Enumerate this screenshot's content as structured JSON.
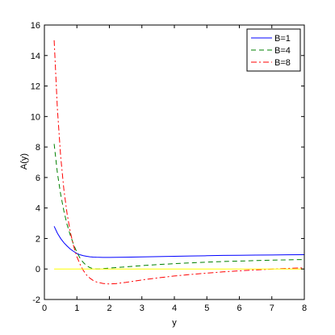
{
  "chart_data": {
    "type": "line",
    "title": "",
    "xlabel": "y",
    "ylabel": "A(y)",
    "xlim": [
      0,
      8
    ],
    "ylim": [
      -2,
      16
    ],
    "xticks": [
      0,
      1,
      2,
      3,
      4,
      5,
      6,
      7,
      8
    ],
    "yticks": [
      -2,
      0,
      2,
      4,
      6,
      8,
      10,
      12,
      14,
      16
    ],
    "grid": false,
    "legend": {
      "position": "top-right"
    },
    "series": [
      {
        "name": "B=1",
        "color": "#0000ff",
        "dash": "solid",
        "x": [
          0.3,
          0.4,
          0.5,
          0.6,
          0.7,
          0.8,
          0.9,
          1.0,
          1.1,
          1.2,
          1.3,
          1.4,
          1.5,
          1.6,
          1.8,
          2.0,
          2.5,
          3.0,
          3.5,
          4.0,
          4.5,
          5.0,
          5.5,
          6.0,
          6.5,
          7.0,
          7.5,
          8.0
        ],
        "y": [
          2.8,
          2.35,
          2.0,
          1.72,
          1.5,
          1.3,
          1.15,
          1.02,
          0.93,
          0.87,
          0.83,
          0.8,
          0.78,
          0.77,
          0.76,
          0.76,
          0.77,
          0.79,
          0.81,
          0.83,
          0.85,
          0.87,
          0.89,
          0.9,
          0.91,
          0.92,
          0.93,
          0.94
        ]
      },
      {
        "name": "B=4",
        "color": "#008000",
        "dash": "dashed",
        "x": [
          0.3,
          0.4,
          0.5,
          0.6,
          0.7,
          0.8,
          0.9,
          1.0,
          1.1,
          1.2,
          1.3,
          1.4,
          1.5,
          1.6,
          1.7,
          1.8,
          2.0,
          2.5,
          3.0,
          3.5,
          4.0,
          4.5,
          5.0,
          5.5,
          6.0,
          6.5,
          7.0,
          7.5,
          8.0
        ],
        "y": [
          8.2,
          6.3,
          4.9,
          3.8,
          2.9,
          2.2,
          1.6,
          1.1,
          0.7,
          0.42,
          0.22,
          0.09,
          0.02,
          0.0,
          0.0,
          0.02,
          0.06,
          0.14,
          0.22,
          0.29,
          0.35,
          0.4,
          0.45,
          0.49,
          0.52,
          0.55,
          0.58,
          0.6,
          0.62
        ]
      },
      {
        "name": "B=8",
        "color": "#ff0000",
        "dash": "dashdot",
        "x": [
          0.3,
          0.4,
          0.5,
          0.6,
          0.7,
          0.8,
          0.9,
          1.0,
          1.1,
          1.2,
          1.3,
          1.4,
          1.5,
          1.6,
          1.8,
          2.0,
          2.2,
          2.5,
          3.0,
          3.5,
          4.0,
          4.5,
          5.0,
          5.5,
          6.0,
          6.5,
          7.0,
          7.5,
          8.0
        ],
        "y": [
          15.0,
          10.5,
          7.4,
          5.2,
          3.6,
          2.4,
          1.5,
          0.8,
          0.3,
          -0.1,
          -0.4,
          -0.6,
          -0.75,
          -0.85,
          -0.95,
          -0.98,
          -0.96,
          -0.88,
          -0.72,
          -0.58,
          -0.46,
          -0.36,
          -0.27,
          -0.19,
          -0.12,
          -0.06,
          -0.01,
          0.04,
          0.08
        ]
      },
      {
        "name": "",
        "color": "#ffff00",
        "dash": "solid",
        "x": [
          0.3,
          8.0
        ],
        "y": [
          0.0,
          0.0
        ]
      }
    ]
  }
}
